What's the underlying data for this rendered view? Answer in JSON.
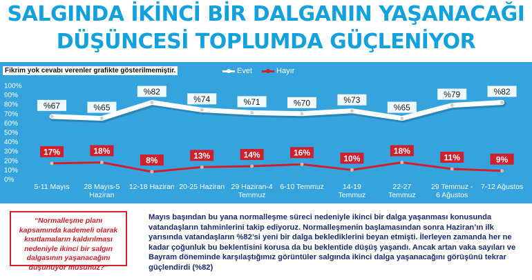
{
  "title_line1": "SALGINDA İKİNCİ BİR DALGANIN YAŞANACAĞI",
  "title_line2": "DÜŞÜNCESİ TOPLUMDA GÜÇLENİYOR",
  "note": "Fikrim yok cevabı verenler grafikte gösterilmemiştir.",
  "legend": {
    "evet": "Evet",
    "hayir": "Hayır"
  },
  "question": "“Normalleşme planı kapsamında kademeli olarak kısıtlamaların kaldırılması nedeniyle ikinci bir salgın dalgasının yaşanacağını düşünüyor musunuz?”",
  "body_text": "Mayıs başından bu yana normalleşme süreci nedeniyle ikinci bir dalga yaşanması konusunda vatandaşların tahminlerini takip ediyoruz. Normalleşmenin başlamasından sonra Haziran’ın ilk yarısında vatandaşların %82’si yeni bir dalga beklediklerini beyan etmişti. İlerleyen zamanda her ne kadar çoğunluk bu beklentisini korusa da bu beklentide düşüş yaşandı. Ancak artan vaka sayıları ve Bayram döneminde karşılaştığımız görüntüler salgında ikinci dalga yaşanacağını görüşünü tekrar güçlendirdi (%82)",
  "colors": {
    "title": "#12a1dd",
    "chart_bg": "#35a3dd",
    "evet": "#ffffff",
    "hayir": "#d0202c",
    "body_text": "#1a2a6c"
  },
  "chart_data": {
    "type": "line",
    "categories": [
      [
        "5-11 Mayıs"
      ],
      [
        "28 Mayıs-5",
        "Haziran"
      ],
      [
        "12-18 Haziran"
      ],
      [
        "20-25 Haziran"
      ],
      [
        "29 Haziran-4",
        "Temmuz"
      ],
      [
        "6-10 Temmuz"
      ],
      [
        "14-19",
        "Temmuz"
      ],
      [
        "22-27",
        "Temmuz"
      ],
      [
        "29 Temmuz -",
        "6 Ağustos"
      ],
      [
        "7-12 Ağustos"
      ]
    ],
    "series": [
      {
        "name": "Evet",
        "values": [
          67,
          65,
          82,
          74,
          71,
          70,
          73,
          65,
          79,
          82
        ],
        "labels": [
          "%67",
          "%65",
          "%82",
          "%74",
          "%71",
          "%70",
          "%73",
          "%65",
          "%79",
          "%82"
        ]
      },
      {
        "name": "Hayır",
        "values": [
          17,
          18,
          8,
          13,
          14,
          16,
          10,
          18,
          11,
          9
        ],
        "labels": [
          "17%",
          "18%",
          "8%",
          "13%",
          "14%",
          "16%",
          "10%",
          "18%",
          "11%",
          "9%"
        ]
      }
    ],
    "yticks": [
      "0%",
      "10%",
      "20%",
      "30%",
      "40%",
      "50%",
      "60%",
      "70%",
      "80%",
      "90%",
      "100%"
    ],
    "ylim": [
      0,
      100
    ],
    "grid": false,
    "legend_position": "top-center"
  }
}
